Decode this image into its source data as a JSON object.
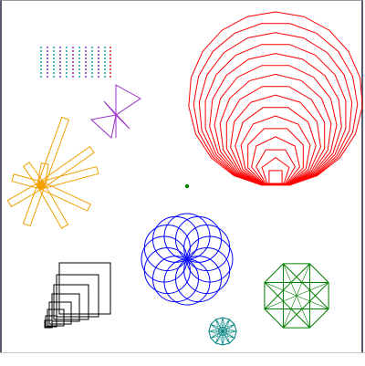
{
  "colors": {
    "frame": "#5a5a6e",
    "spiral_polygons": "#ff0000",
    "bowtie": "#9b30c8",
    "dot_grid_cyan": "#20b0b0",
    "dot_grid_red": "#d03030",
    "dot_grid_purple": "#8a3ad0",
    "pinwheel": "#f0a000",
    "center_dot": "#008000",
    "rosette_blue": "#0000ff",
    "octagon_star": "#008000",
    "small_star": "#008080",
    "nested_squares": "#000000"
  },
  "bottom_strip_text": ""
}
